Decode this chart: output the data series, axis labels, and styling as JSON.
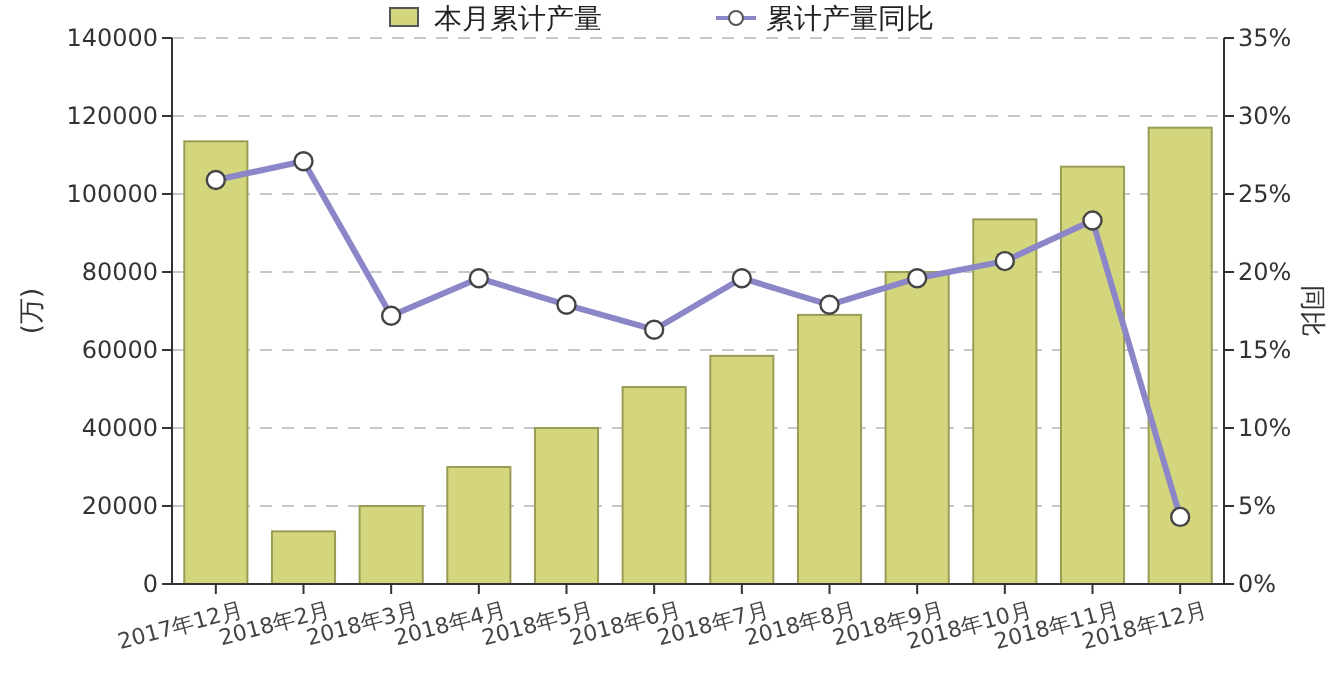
{
  "chart_data": {
    "type": "bar",
    "categories": [
      "2017年12月",
      "2018年2月",
      "2018年3月",
      "2018年4月",
      "2018年5月",
      "2018年6月",
      "2018年7月",
      "2018年8月",
      "2018年9月",
      "2018年10月",
      "2018年11月",
      "2018年12月"
    ],
    "series": [
      {
        "name": "本月累计产量",
        "color": "#d4d67e",
        "values": [
          113500,
          13500,
          20000,
          30000,
          40000,
          50500,
          58500,
          69000,
          80000,
          93500,
          107000,
          117000
        ]
      },
      {
        "name": "累计产量同比",
        "type": "line",
        "axis": "y2",
        "color": "#8a86c8",
        "marker": "circle",
        "values": [
          25.9,
          27.1,
          17.2,
          19.6,
          17.9,
          16.3,
          19.6,
          17.9,
          19.6,
          20.7,
          23.3,
          4.3
        ]
      }
    ],
    "ylabel": "(万)",
    "y2label": "同比",
    "ylim": [
      0,
      140000
    ],
    "yticks": [
      0,
      20000,
      40000,
      60000,
      80000,
      100000,
      120000,
      140000
    ],
    "y2lim": [
      0,
      35
    ],
    "y2ticks": [
      {
        "value": 0,
        "label": "0%"
      },
      {
        "value": 5,
        "label": "5%"
      },
      {
        "value": 10,
        "label": "10%"
      },
      {
        "value": 15,
        "label": "15%"
      },
      {
        "value": 20,
        "label": "20%"
      },
      {
        "value": 25,
        "label": "25%"
      },
      {
        "value": 30,
        "label": "30%"
      },
      {
        "value": 35,
        "label": "35%"
      }
    ],
    "grid": "y",
    "legend": "top"
  }
}
